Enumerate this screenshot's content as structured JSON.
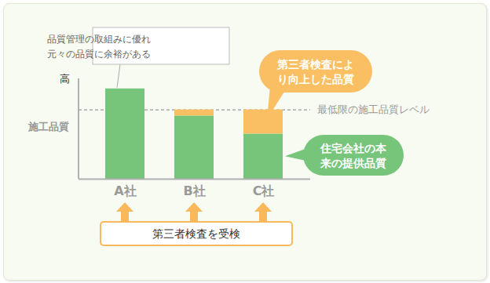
{
  "chart_data": {
    "type": "bar",
    "stacked": true,
    "y_label": "施工品質",
    "categories": [
      "A社",
      "B社",
      "C社"
    ],
    "series": [
      {
        "name": "住宅会社の本来の提供品質",
        "color": "#77c57a",
        "values": [
          90,
          63,
          45
        ]
      },
      {
        "name": "第三者検査により向上した品質",
        "color": "#fbbf63",
        "values": [
          0,
          6,
          24
        ]
      }
    ],
    "ylim": [
      0,
      100
    ],
    "yticks": [
      {
        "value": 100,
        "label": "高"
      }
    ],
    "reference_line": {
      "value": 69,
      "label": "最低限の施工品質レベル"
    },
    "annotations": [
      {
        "text": "品質管理の取組みに優れ元々の品質に余裕がある",
        "target": "A社"
      },
      {
        "text": "第三者検査を受検",
        "target": [
          "A社",
          "B社",
          "C社"
        ]
      }
    ]
  }
}
